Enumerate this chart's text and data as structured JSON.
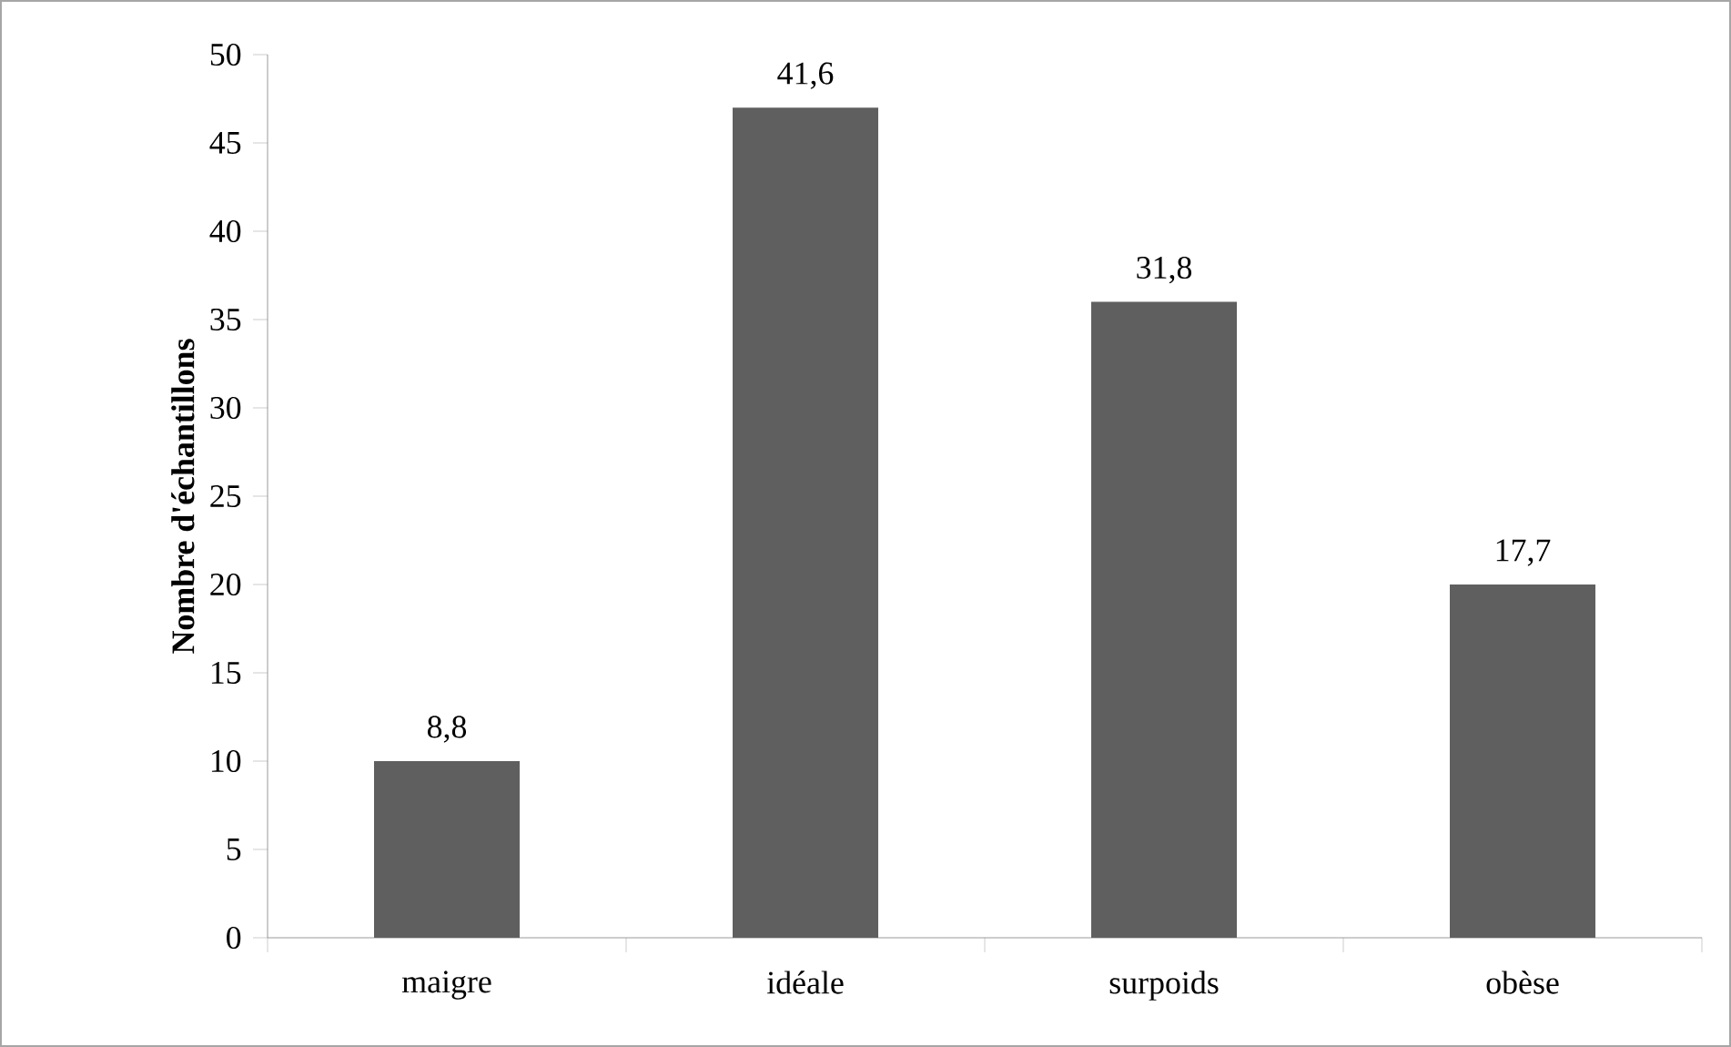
{
  "chart_data": {
    "type": "bar",
    "ylabel": "Nombre d'échantillons",
    "categories": [
      "maigre",
      "idéale",
      "surpoids",
      "obèse"
    ],
    "values": [
      10,
      47,
      36,
      20
    ],
    "annotations": [
      {
        "text": "8,8",
        "x": "maigre",
        "y": 10
      },
      {
        "text": "41,6",
        "x": "idéale",
        "y": 47
      },
      {
        "text": "31,8",
        "x": "surpoids",
        "y": 36
      },
      {
        "text": "17,7",
        "x": "obèse",
        "y": 20
      }
    ],
    "color": "#5f5f5f",
    "ylim": [
      0,
      50
    ],
    "yticks": [
      0,
      5,
      10,
      15,
      20,
      25,
      30,
      35,
      40,
      45,
      50
    ]
  }
}
